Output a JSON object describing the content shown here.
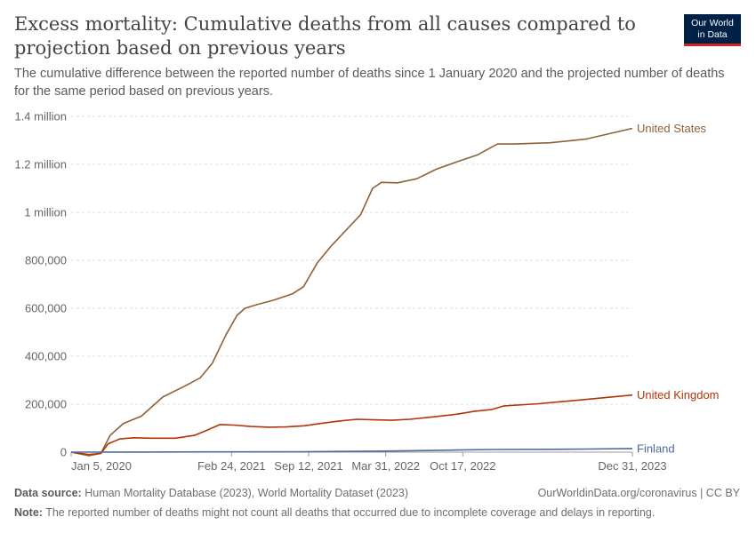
{
  "header": {
    "title": "Excess mortality: Cumulative deaths from all causes compared to projection based on previous years",
    "subtitle": "The cumulative difference between the reported number of deaths since 1 January 2020 and the projected number of deaths for the same period based on previous years.",
    "logo_line1": "Our World",
    "logo_line2": "in Data"
  },
  "footer": {
    "source_label": "Data source:",
    "source_text": "Human Mortality Database (2023), World Mortality Dataset (2023)",
    "url_text": "OurWorldinData.org/coronavirus",
    "license": "CC BY",
    "note_label": "Note:",
    "note_text": "The reported number of deaths might not count all deaths that occurred due to incomplete coverage and delays in reporting."
  },
  "colors": {
    "united_states": "#8c6239",
    "united_kingdom": "#b13507",
    "finland": "#4c6a9c",
    "grid": "#dddddd",
    "text": "#5b5b5b",
    "logo_bg": "#002147",
    "logo_accent": "#ce261e"
  },
  "chart_data": {
    "type": "line",
    "title": "Excess mortality: Cumulative deaths from all causes compared to projection based on previous years",
    "xlabel": "",
    "ylabel": "",
    "ylim": [
      0,
      1400000
    ],
    "xlim": [
      "2020-01-05",
      "2023-12-31"
    ],
    "y_ticks": [
      {
        "value": 0,
        "label": "0"
      },
      {
        "value": 200000,
        "label": "200,000"
      },
      {
        "value": 400000,
        "label": "400,000"
      },
      {
        "value": 600000,
        "label": "600,000"
      },
      {
        "value": 800000,
        "label": "800,000"
      },
      {
        "value": 1000000,
        "label": "1 million"
      },
      {
        "value": 1200000,
        "label": "1.2 million"
      },
      {
        "value": 1400000,
        "label": "1.4 million"
      }
    ],
    "x_ticks": [
      {
        "date": "2020-01-05",
        "label": "Jan 5, 2020"
      },
      {
        "date": "2021-02-24",
        "label": "Feb 24, 2021"
      },
      {
        "date": "2021-09-12",
        "label": "Sep 12, 2021"
      },
      {
        "date": "2022-03-31",
        "label": "Mar 31, 2022"
      },
      {
        "date": "2022-10-17",
        "label": "Oct 17, 2022"
      },
      {
        "date": "2023-12-31",
        "label": "Dec 31, 2023"
      }
    ],
    "grid": true,
    "series": [
      {
        "name": "United States",
        "color": "#8c6239",
        "points": [
          [
            "2020-01-05",
            0
          ],
          [
            "2020-02-20",
            -15000
          ],
          [
            "2020-03-22",
            -5000
          ],
          [
            "2020-04-15",
            70000
          ],
          [
            "2020-05-20",
            120000
          ],
          [
            "2020-07-05",
            150000
          ],
          [
            "2020-08-30",
            230000
          ],
          [
            "2020-10-25",
            275000
          ],
          [
            "2020-12-05",
            310000
          ],
          [
            "2021-01-05",
            370000
          ],
          [
            "2021-02-10",
            490000
          ],
          [
            "2021-03-10",
            570000
          ],
          [
            "2021-03-31",
            600000
          ],
          [
            "2021-05-01",
            615000
          ],
          [
            "2021-06-15",
            635000
          ],
          [
            "2021-08-01",
            660000
          ],
          [
            "2021-08-30",
            690000
          ],
          [
            "2021-10-05",
            790000
          ],
          [
            "2021-11-10",
            860000
          ],
          [
            "2021-12-15",
            920000
          ],
          [
            "2022-01-25",
            990000
          ],
          [
            "2022-02-25",
            1100000
          ],
          [
            "2022-03-20",
            1125000
          ],
          [
            "2022-05-01",
            1123000
          ],
          [
            "2022-06-20",
            1140000
          ],
          [
            "2022-08-10",
            1180000
          ],
          [
            "2022-10-01",
            1210000
          ],
          [
            "2022-11-25",
            1240000
          ],
          [
            "2023-01-15",
            1285000
          ],
          [
            "2023-03-01",
            1285000
          ],
          [
            "2023-06-01",
            1290000
          ],
          [
            "2023-09-01",
            1305000
          ],
          [
            "2023-12-31",
            1350000
          ]
        ]
      },
      {
        "name": "United Kingdom",
        "color": "#b13507",
        "points": [
          [
            "2020-01-05",
            0
          ],
          [
            "2020-02-20",
            -10000
          ],
          [
            "2020-03-22",
            -5000
          ],
          [
            "2020-04-10",
            35000
          ],
          [
            "2020-05-10",
            55000
          ],
          [
            "2020-06-15",
            60000
          ],
          [
            "2020-08-01",
            58000
          ],
          [
            "2020-10-01",
            58000
          ],
          [
            "2020-11-20",
            70000
          ],
          [
            "2020-12-20",
            90000
          ],
          [
            "2021-01-25",
            115000
          ],
          [
            "2021-03-01",
            113000
          ],
          [
            "2021-04-15",
            107000
          ],
          [
            "2021-06-01",
            104000
          ],
          [
            "2021-07-15",
            105000
          ],
          [
            "2021-09-01",
            110000
          ],
          [
            "2021-10-15",
            120000
          ],
          [
            "2021-12-01",
            130000
          ],
          [
            "2022-01-15",
            137000
          ],
          [
            "2022-03-01",
            135000
          ],
          [
            "2022-04-15",
            133000
          ],
          [
            "2022-06-01",
            137000
          ],
          [
            "2022-08-01",
            147000
          ],
          [
            "2022-10-01",
            158000
          ],
          [
            "2022-11-15",
            170000
          ],
          [
            "2023-01-01",
            178000
          ],
          [
            "2023-02-01",
            193000
          ],
          [
            "2023-05-01",
            202000
          ],
          [
            "2023-08-01",
            215000
          ],
          [
            "2023-12-31",
            238000
          ]
        ]
      },
      {
        "name": "Finland",
        "color": "#4c6a9c",
        "points": [
          [
            "2020-01-05",
            0
          ],
          [
            "2020-06-01",
            300
          ],
          [
            "2021-01-01",
            1000
          ],
          [
            "2021-09-01",
            2000
          ],
          [
            "2022-03-01",
            4000
          ],
          [
            "2022-06-01",
            6000
          ],
          [
            "2022-10-01",
            9000
          ],
          [
            "2023-01-01",
            11000
          ],
          [
            "2023-06-01",
            12000
          ],
          [
            "2023-09-01",
            13000
          ],
          [
            "2023-12-31",
            15000
          ]
        ]
      }
    ]
  }
}
